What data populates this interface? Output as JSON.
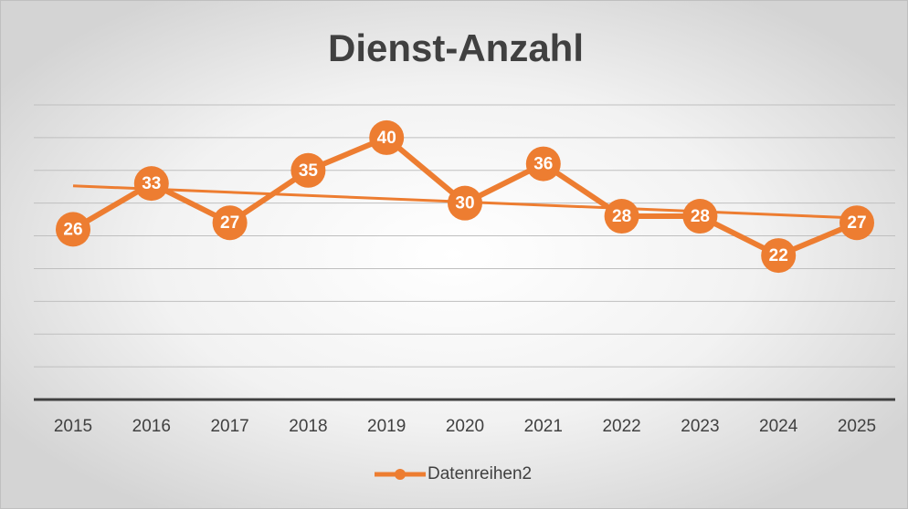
{
  "chart_data": {
    "type": "line",
    "title": "Dienst-Anzahl",
    "categories": [
      "2015",
      "2016",
      "2017",
      "2018",
      "2019",
      "2020",
      "2021",
      "2022",
      "2023",
      "2024",
      "2025"
    ],
    "series": [
      {
        "name": "Datenreihen2",
        "color": "#ed7d31",
        "values": [
          26,
          33,
          27,
          35,
          40,
          30,
          36,
          28,
          28,
          22,
          27
        ]
      }
    ],
    "ylim": [
      0,
      45
    ],
    "yticks": [
      0,
      5,
      10,
      15,
      20,
      25,
      30,
      35,
      40,
      45
    ],
    "grid": true,
    "trendline": "linear",
    "legend": "bottom"
  }
}
